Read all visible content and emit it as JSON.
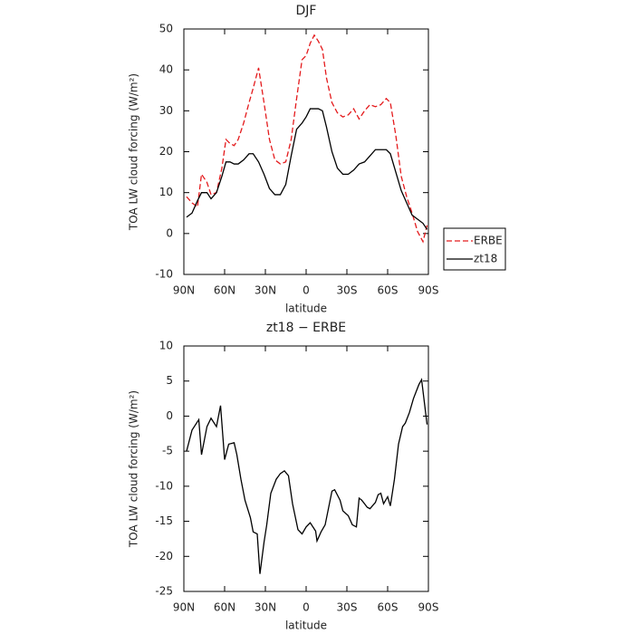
{
  "chart_data": [
    {
      "type": "line",
      "title": "DJF",
      "x_label": "latitude",
      "y_label": "TOA LW cloud forcing (W/m²)",
      "x": [
        88,
        84,
        80,
        77,
        73,
        70,
        66,
        62,
        59,
        56,
        53,
        50,
        46,
        42,
        39,
        35,
        31,
        27,
        23,
        19,
        15,
        11,
        7,
        3,
        0,
        -3,
        -6,
        -9,
        -12,
        -15,
        -19,
        -23,
        -27,
        -31,
        -35,
        -39,
        -43,
        -47,
        -51,
        -55,
        -59,
        -62,
        -66,
        -70,
        -74,
        -78,
        -82,
        -86,
        -89
      ],
      "series": [
        {
          "name": "ERBE",
          "color": "#e41a1c",
          "line_style": "dashed",
          "values": [
            9,
            7.5,
            6.5,
            14.5,
            12.5,
            9.5,
            10,
            16,
            23,
            22,
            21.5,
            23,
            27,
            32,
            35.5,
            40.5,
            32,
            23,
            18,
            17,
            17.5,
            23,
            33,
            42.5,
            43.5,
            46.5,
            48.5,
            47,
            45,
            38,
            32,
            29.5,
            28.5,
            29,
            30.5,
            28,
            30,
            31.5,
            31,
            31.5,
            33,
            32,
            24,
            14,
            9,
            5,
            0.5,
            -2,
            2
          ]
        },
        {
          "name": "zt18",
          "color": "#000000",
          "line_style": "solid",
          "values": [
            4,
            5,
            8,
            10,
            10,
            8.5,
            10,
            14,
            17.5,
            17.5,
            17,
            17,
            18,
            19.5,
            19.5,
            17.5,
            14.5,
            11,
            9.5,
            9.5,
            12,
            19,
            25.5,
            27,
            28.5,
            30.5,
            30.5,
            30.5,
            30,
            26,
            20,
            16,
            14.5,
            14.5,
            15.5,
            17,
            17.5,
            19,
            20.5,
            20.5,
            20.5,
            19.5,
            15,
            10.5,
            7.5,
            4.5,
            3.5,
            2.5,
            1
          ]
        }
      ],
      "xlim": [
        90,
        -90
      ],
      "xticks": [
        {
          "value": 90,
          "label": "90N"
        },
        {
          "value": 60,
          "label": "60N"
        },
        {
          "value": 30,
          "label": "30N"
        },
        0,
        {
          "value": -30,
          "label": "30S"
        },
        {
          "value": -60,
          "label": "60S"
        },
        {
          "value": -90,
          "label": "90S"
        }
      ],
      "ylim": [
        -10,
        50
      ],
      "yticks": [
        -10,
        0,
        10,
        20,
        30,
        40,
        50
      ],
      "legend": true,
      "legend_position": "right"
    },
    {
      "type": "line",
      "title": "zt18 − ERBE",
      "x_label": "latitude",
      "y_label": "TOA LW cloud forcing (W/m²)",
      "x": [
        88,
        84,
        79,
        77,
        73,
        70,
        66,
        63,
        60,
        57,
        53,
        51,
        48,
        45,
        41,
        39,
        36,
        34,
        31,
        29,
        26,
        22,
        19,
        16,
        13,
        10,
        6,
        3,
        0,
        -3,
        -7,
        -8,
        -11,
        -14,
        -19,
        -21,
        -25,
        -27,
        -31,
        -34,
        -37,
        -39,
        -41,
        -45,
        -47,
        -51,
        -53,
        -55,
        -57,
        -60,
        -62,
        -65,
        -68,
        -71,
        -73,
        -76,
        -79,
        -83,
        -85,
        -89
      ],
      "series": [
        {
          "color": "#000000",
          "line_style": "solid",
          "values": [
            -5,
            -2,
            -0.5,
            -5.5,
            -1.5,
            -0.3,
            -1.5,
            1.5,
            -6.2,
            -4,
            -3.8,
            -5.5,
            -9,
            -12,
            -14.5,
            -16.5,
            -16.8,
            -22.5,
            -18,
            -15.5,
            -11,
            -9,
            -8.2,
            -7.8,
            -8.5,
            -12.5,
            -16.2,
            -16.8,
            -15.8,
            -15.2,
            -16.4,
            -17.8,
            -16.5,
            -15.5,
            -10.7,
            -10.5,
            -12,
            -13.5,
            -14.2,
            -15.5,
            -15.8,
            -11.7,
            -12,
            -13,
            -13.2,
            -12.3,
            -11.2,
            -11,
            -12.5,
            -11.5,
            -12.8,
            -9,
            -4,
            -1.5,
            -1,
            0.5,
            2.5,
            4.5,
            5.2,
            -1.2
          ]
        }
      ],
      "xlim": [
        90,
        -90
      ],
      "xticks": [
        {
          "value": 90,
          "label": "90N"
        },
        {
          "value": 60,
          "label": "60N"
        },
        {
          "value": 30,
          "label": "30N"
        },
        0,
        {
          "value": -30,
          "label": "30S"
        },
        {
          "value": -60,
          "label": "60S"
        },
        {
          "value": -90,
          "label": "90S"
        }
      ],
      "ylim": [
        -25,
        10
      ],
      "yticks": [
        -25,
        -20,
        -15,
        -10,
        -5,
        0,
        5,
        10
      ],
      "legend": false
    }
  ]
}
